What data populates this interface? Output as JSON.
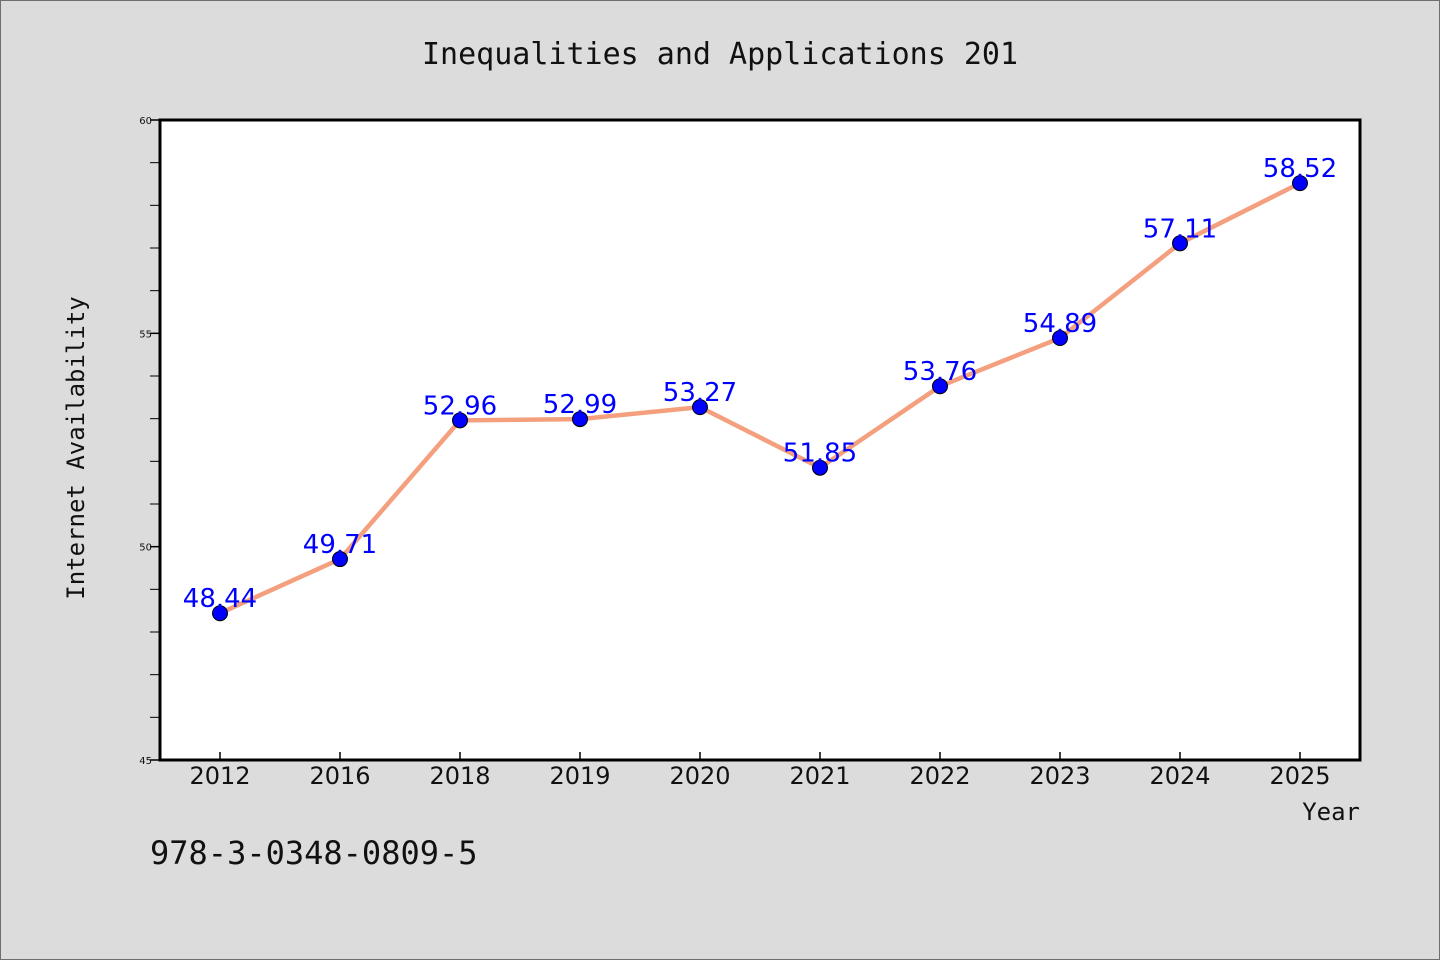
{
  "chart_data": {
    "type": "line",
    "title": "Inequalities and Applications 201",
    "xlabel": "Year",
    "ylabel": "Internet Availability",
    "categories": [
      "2012",
      "2016",
      "2018",
      "2019",
      "2020",
      "2021",
      "2022",
      "2023",
      "2024",
      "2025"
    ],
    "values": [
      48.44,
      49.71,
      52.96,
      52.99,
      53.27,
      51.85,
      53.76,
      54.89,
      57.11,
      58.52
    ],
    "data_labels": [
      "48.44",
      "49.71",
      "52.96",
      "52.99",
      "53.27",
      "51.85",
      "53.76",
      "54.89",
      "57.11",
      "58.52"
    ],
    "ylim": [
      45,
      60
    ],
    "yticks": [
      "45",
      "50",
      "55",
      "60"
    ],
    "grid": false,
    "colors": {
      "line": "#f4a07e",
      "marker": "#0000ff",
      "label": "#0000ff",
      "background": "#dcdcdc",
      "plot_background": "#ffffff"
    }
  },
  "annotation": {
    "isbn": "978-3-0348-0809-5"
  }
}
